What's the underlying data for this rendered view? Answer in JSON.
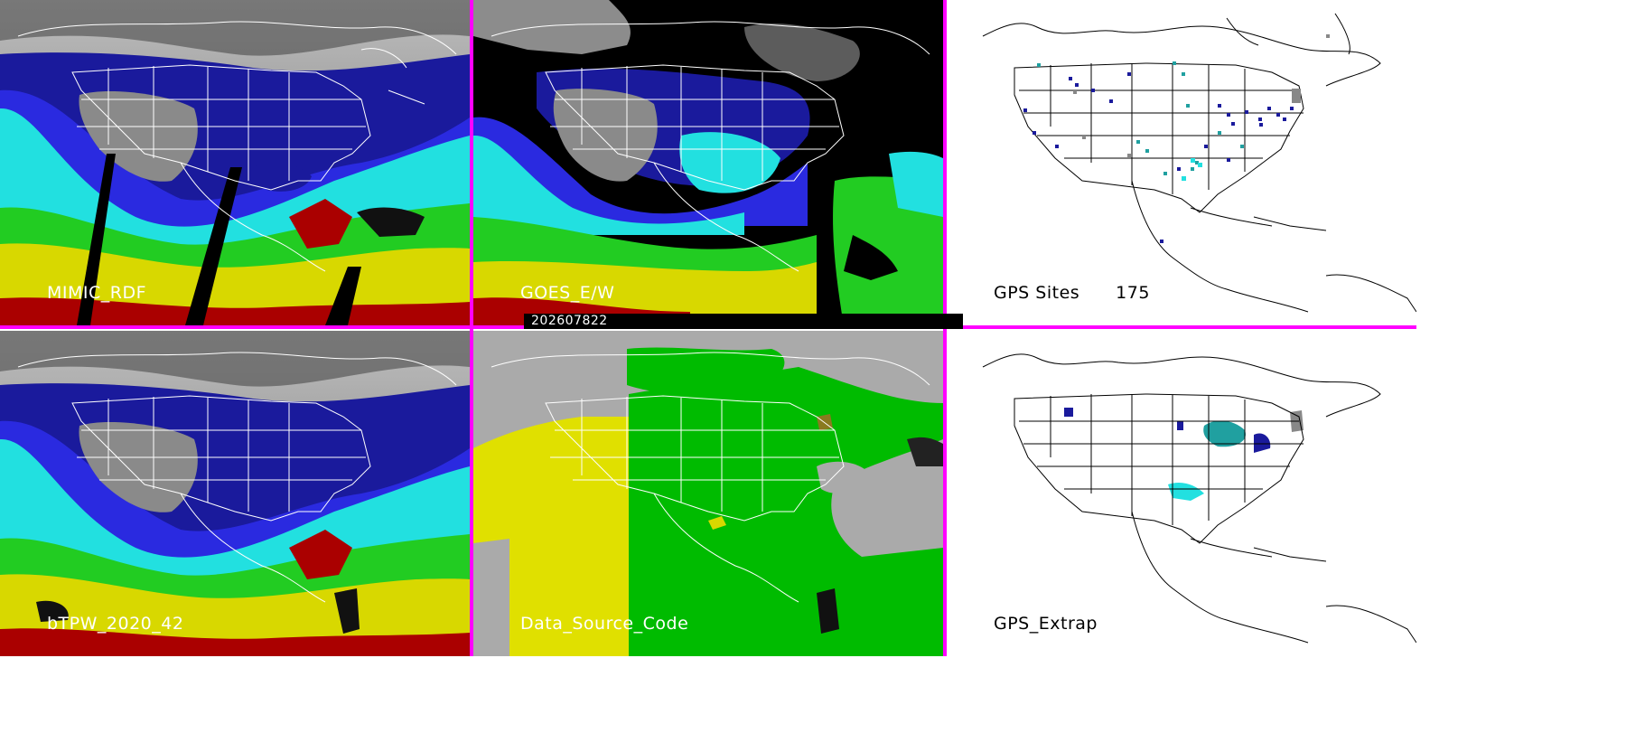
{
  "timestamp": "202607822",
  "panels": [
    {
      "id": "mimic",
      "label": "MIMIC_RDF"
    },
    {
      "id": "goes",
      "label": "GOES_E/W"
    },
    {
      "id": "gps_sites",
      "label": "GPS Sites",
      "count": "175"
    },
    {
      "id": "btpw",
      "label": "bTPW_2020_42"
    },
    {
      "id": "data_source",
      "label": "Data_Source_Code"
    },
    {
      "id": "gps_extrap",
      "label": "GPS_Extrap"
    }
  ],
  "colors": {
    "separator": "#ff00ff",
    "ocean_gray": "#9a9a9a",
    "tpw_dark_blue": "#1a1a9c",
    "tpw_blue": "#2a2ae0",
    "tpw_cyan": "#22e0e0",
    "tpw_green": "#22cc22",
    "tpw_yellow": "#d8d800",
    "tpw_red": "#aa0000",
    "data_source_yellow": "#e0e000",
    "data_source_green": "#00bb00",
    "data_source_gray": "#aaaaaa"
  }
}
